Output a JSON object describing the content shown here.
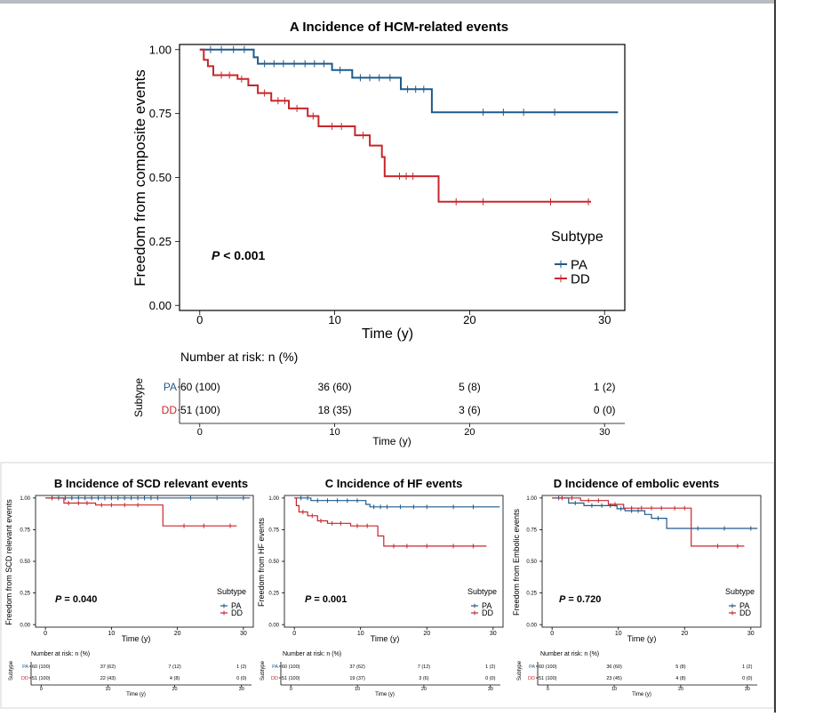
{
  "colors": {
    "pa": "#1f5a8c",
    "dd": "#c8262b",
    "axis": "#000000"
  },
  "risk_header": "Number at risk: n (%)",
  "strata_title": "Subtype",
  "chart_data": [
    {
      "id": "A",
      "type": "line",
      "title": "A Incidence of HCM-related events",
      "ylabel": "Freedom from composite events",
      "xlabel": "Time (y)",
      "xlim": [
        -1.5,
        31.5
      ],
      "ylim": [
        -0.02,
        1.02
      ],
      "xticks": [
        0,
        10,
        20,
        30
      ],
      "yticks": [
        "0.00",
        "0.25",
        "0.50",
        "0.75",
        "1.00"
      ],
      "pvalue": "< 0.001",
      "legend_title": "Subtype",
      "series": [
        {
          "name": "PA",
          "color": "#1f5a8c",
          "steps": [
            [
              0,
              1.0
            ],
            [
              4,
              0.97
            ],
            [
              4.3,
              0.945
            ],
            [
              9.8,
              0.92
            ],
            [
              11.3,
              0.89
            ],
            [
              14.9,
              0.845
            ],
            [
              17.2,
              0.755
            ],
            [
              31,
              0.755
            ]
          ],
          "censors": [
            [
              0.8,
              1.0
            ],
            [
              1.6,
              1.0
            ],
            [
              2.5,
              1.0
            ],
            [
              3.3,
              1.0
            ],
            [
              4.8,
              0.945
            ],
            [
              5.5,
              0.945
            ],
            [
              6.2,
              0.945
            ],
            [
              7,
              0.945
            ],
            [
              7.8,
              0.945
            ],
            [
              8.5,
              0.945
            ],
            [
              9.2,
              0.945
            ],
            [
              10.4,
              0.92
            ],
            [
              11.9,
              0.89
            ],
            [
              12.6,
              0.89
            ],
            [
              13.3,
              0.89
            ],
            [
              14.1,
              0.89
            ],
            [
              15.4,
              0.845
            ],
            [
              16,
              0.845
            ],
            [
              16.6,
              0.845
            ],
            [
              21,
              0.755
            ],
            [
              22.5,
              0.755
            ],
            [
              24,
              0.755
            ],
            [
              26.3,
              0.755
            ]
          ]
        },
        {
          "name": "DD",
          "color": "#c8262b",
          "steps": [
            [
              0,
              1.0
            ],
            [
              0.3,
              0.96
            ],
            [
              0.6,
              0.935
            ],
            [
              1,
              0.9
            ],
            [
              2.8,
              0.885
            ],
            [
              3.6,
              0.86
            ],
            [
              4.3,
              0.83
            ],
            [
              5.3,
              0.8
            ],
            [
              6.6,
              0.77
            ],
            [
              8,
              0.74
            ],
            [
              8.6,
              0.74
            ],
            [
              8.8,
              0.7
            ],
            [
              11.5,
              0.665
            ],
            [
              12.6,
              0.625
            ],
            [
              13.5,
              0.58
            ],
            [
              13.7,
              0.505
            ],
            [
              17.7,
              0.405
            ],
            [
              29,
              0.405
            ]
          ],
          "censors": [
            [
              1.6,
              0.9
            ],
            [
              2.2,
              0.9
            ],
            [
              3.1,
              0.885
            ],
            [
              4.8,
              0.83
            ],
            [
              5.8,
              0.8
            ],
            [
              6.3,
              0.8
            ],
            [
              7.2,
              0.77
            ],
            [
              8.4,
              0.74
            ],
            [
              9.8,
              0.7
            ],
            [
              10.5,
              0.7
            ],
            [
              12.1,
              0.665
            ],
            [
              14.8,
              0.505
            ],
            [
              15.3,
              0.505
            ],
            [
              15.8,
              0.505
            ],
            [
              19,
              0.405
            ],
            [
              21,
              0.405
            ],
            [
              26,
              0.405
            ],
            [
              28.8,
              0.405
            ]
          ]
        }
      ],
      "risk_table": {
        "header": "Number at risk: n (%)",
        "ylabel": "Subtype",
        "xlabel": "Time (y)",
        "rows": [
          {
            "name": "PA",
            "values": [
              "60 (100)",
              "36 (60)",
              "5 (8)",
              "1 (2)"
            ]
          },
          {
            "name": "DD",
            "values": [
              "51 (100)",
              "18 (35)",
              "3 (6)",
              "0 (0)"
            ]
          }
        ]
      }
    },
    {
      "id": "B",
      "type": "line",
      "title": "B Incidence of SCD relevant events",
      "ylabel": "Freedom from SCD relevant events",
      "xlabel": "Time (y)",
      "xlim": [
        -1.5,
        31.5
      ],
      "ylim": [
        -0.02,
        1.02
      ],
      "xticks": [
        0,
        10,
        20,
        30
      ],
      "yticks": [
        "0.00",
        "0.25",
        "0.50",
        "0.75",
        "1.00"
      ],
      "pvalue": "= 0.040",
      "legend_title": "Subtype",
      "series": [
        {
          "name": "PA",
          "color": "#1f5a8c",
          "steps": [
            [
              0,
              1.0
            ],
            [
              31,
              1.0
            ]
          ],
          "censors": [
            [
              1,
              1
            ],
            [
              2,
              1
            ],
            [
              3,
              1
            ],
            [
              4,
              1
            ],
            [
              5,
              1
            ],
            [
              6,
              1
            ],
            [
              7,
              1
            ],
            [
              8,
              1
            ],
            [
              9,
              1
            ],
            [
              10,
              1
            ],
            [
              11,
              1
            ],
            [
              12,
              1
            ],
            [
              13,
              1
            ],
            [
              14,
              1
            ],
            [
              15,
              1
            ],
            [
              16,
              1
            ],
            [
              17,
              1
            ],
            [
              22,
              1
            ],
            [
              26,
              1
            ],
            [
              30,
              1
            ]
          ]
        },
        {
          "name": "DD",
          "color": "#c8262b",
          "steps": [
            [
              0,
              1.0
            ],
            [
              2.8,
              0.96
            ],
            [
              7.6,
              0.945
            ],
            [
              17.8,
              0.78
            ],
            [
              29,
              0.78
            ]
          ],
          "censors": [
            [
              1,
              1.0
            ],
            [
              3.5,
              0.96
            ],
            [
              5,
              0.96
            ],
            [
              6.3,
              0.96
            ],
            [
              8.5,
              0.945
            ],
            [
              10,
              0.945
            ],
            [
              12,
              0.945
            ],
            [
              14,
              0.945
            ],
            [
              21,
              0.78
            ],
            [
              24,
              0.78
            ],
            [
              28,
              0.78
            ]
          ]
        }
      ],
      "risk_table": {
        "header": "Number at risk: n (%)",
        "ylabel": "Subtype",
        "xlabel": "Time (y)",
        "rows": [
          {
            "name": "PA",
            "values": [
              "60 (100)",
              "37 (62)",
              "7 (12)",
              "1 (2)"
            ]
          },
          {
            "name": "DD",
            "values": [
              "51 (100)",
              "22 (43)",
              "4 (8)",
              "0 (0)"
            ]
          }
        ]
      }
    },
    {
      "id": "C",
      "type": "line",
      "title": "C Incidence of HF events",
      "ylabel": "Freedom from HF events",
      "xlabel": "Time (y)",
      "xlim": [
        -1.5,
        31.5
      ],
      "ylim": [
        -0.02,
        1.02
      ],
      "xticks": [
        0,
        10,
        20,
        30
      ],
      "yticks": [
        "0.00",
        "0.25",
        "0.50",
        "0.75",
        "1.00"
      ],
      "pvalue": "= 0.001",
      "legend_title": "Subtype",
      "series": [
        {
          "name": "PA",
          "color": "#1f5a8c",
          "steps": [
            [
              0,
              1.0
            ],
            [
              2.5,
              0.98
            ],
            [
              10.8,
              0.95
            ],
            [
              11.4,
              0.93
            ],
            [
              31,
              0.93
            ]
          ],
          "censors": [
            [
              1,
              1.0
            ],
            [
              2,
              1.0
            ],
            [
              3.5,
              0.98
            ],
            [
              5,
              0.98
            ],
            [
              6.5,
              0.98
            ],
            [
              8,
              0.98
            ],
            [
              9.5,
              0.98
            ],
            [
              12,
              0.93
            ],
            [
              13,
              0.93
            ],
            [
              14,
              0.93
            ],
            [
              16,
              0.93
            ],
            [
              18,
              0.93
            ],
            [
              20,
              0.93
            ],
            [
              24,
              0.93
            ],
            [
              27,
              0.93
            ]
          ]
        },
        {
          "name": "DD",
          "color": "#c8262b",
          "steps": [
            [
              0,
              1.0
            ],
            [
              0.3,
              0.94
            ],
            [
              0.7,
              0.89
            ],
            [
              2,
              0.86
            ],
            [
              3.5,
              0.82
            ],
            [
              5,
              0.8
            ],
            [
              8.5,
              0.78
            ],
            [
              12.6,
              0.7
            ],
            [
              13.5,
              0.62
            ],
            [
              29,
              0.62
            ]
          ],
          "censors": [
            [
              1.3,
              0.89
            ],
            [
              2.7,
              0.86
            ],
            [
              4,
              0.82
            ],
            [
              5.7,
              0.8
            ],
            [
              7,
              0.8
            ],
            [
              9.5,
              0.78
            ],
            [
              11,
              0.78
            ],
            [
              15,
              0.62
            ],
            [
              17,
              0.62
            ],
            [
              20,
              0.62
            ],
            [
              24,
              0.62
            ],
            [
              27,
              0.62
            ]
          ]
        }
      ],
      "risk_table": {
        "header": "Number at risk: n (%)",
        "ylabel": "Subtype",
        "xlabel": "Time (y)",
        "rows": [
          {
            "name": "PA",
            "values": [
              "60 (100)",
              "37 (62)",
              "7 (12)",
              "1 (2)"
            ]
          },
          {
            "name": "DD",
            "values": [
              "51 (100)",
              "19 (37)",
              "3 (6)",
              "0 (0)"
            ]
          }
        ]
      }
    },
    {
      "id": "D",
      "type": "line",
      "title": "D Incidence of embolic events",
      "ylabel": "Freedom from Embolic events",
      "xlabel": "Time (y)",
      "xlim": [
        -1.5,
        31.5
      ],
      "ylim": [
        -0.02,
        1.02
      ],
      "xticks": [
        0,
        10,
        20,
        30
      ],
      "yticks": [
        "0.00",
        "0.25",
        "0.50",
        "0.75",
        "1.00"
      ],
      "pvalue": "= 0.720",
      "legend_title": "Subtype",
      "series": [
        {
          "name": "PA",
          "color": "#1f5a8c",
          "steps": [
            [
              0,
              1.0
            ],
            [
              2.5,
              0.96
            ],
            [
              4.8,
              0.94
            ],
            [
              9.8,
              0.915
            ],
            [
              11,
              0.9
            ],
            [
              14,
              0.87
            ],
            [
              15,
              0.84
            ],
            [
              17.3,
              0.76
            ],
            [
              31,
              0.76
            ]
          ],
          "censors": [
            [
              1,
              1.0
            ],
            [
              3.5,
              0.96
            ],
            [
              6,
              0.94
            ],
            [
              7.5,
              0.94
            ],
            [
              8.8,
              0.94
            ],
            [
              10.4,
              0.915
            ],
            [
              12,
              0.9
            ],
            [
              13,
              0.9
            ],
            [
              16,
              0.84
            ],
            [
              22,
              0.76
            ],
            [
              26,
              0.76
            ],
            [
              30,
              0.76
            ]
          ]
        },
        {
          "name": "DD",
          "color": "#c8262b",
          "steps": [
            [
              0,
              1.0
            ],
            [
              4.3,
              0.98
            ],
            [
              8.5,
              0.95
            ],
            [
              10.8,
              0.92
            ],
            [
              21,
              0.62
            ],
            [
              29,
              0.62
            ]
          ],
          "censors": [
            [
              1.5,
              1.0
            ],
            [
              3,
              1.0
            ],
            [
              5.5,
              0.98
            ],
            [
              7,
              0.98
            ],
            [
              9.5,
              0.95
            ],
            [
              12,
              0.92
            ],
            [
              13.5,
              0.92
            ],
            [
              15,
              0.92
            ],
            [
              16.5,
              0.92
            ],
            [
              18.5,
              0.92
            ],
            [
              20,
              0.92
            ],
            [
              25,
              0.62
            ],
            [
              28,
              0.62
            ]
          ]
        }
      ],
      "risk_table": {
        "header": "Number at risk: n (%)",
        "ylabel": "Subtype",
        "xlabel": "Time (y)",
        "rows": [
          {
            "name": "PA",
            "values": [
              "60 (100)",
              "36 (60)",
              "5 (8)",
              "1 (2)"
            ]
          },
          {
            "name": "DD",
            "values": [
              "51 (100)",
              "23 (45)",
              "4 (8)",
              "0 (0)"
            ]
          }
        ]
      }
    }
  ]
}
